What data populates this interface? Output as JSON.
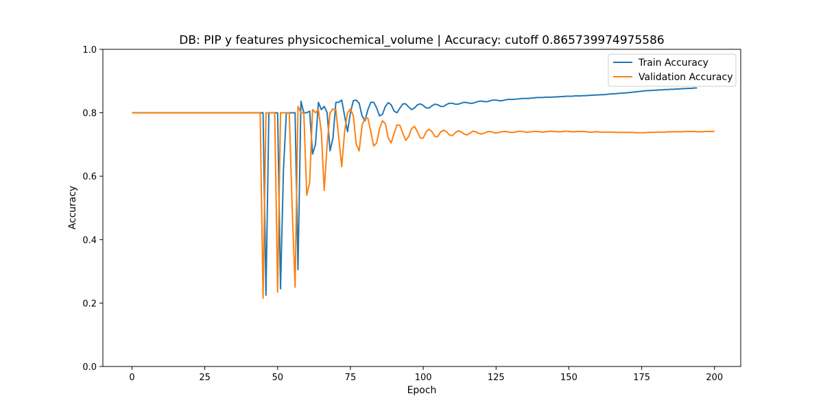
{
  "chart_data": {
    "type": "line",
    "title": "DB: PIP y features physicochemical_volume | Accuracy: cutoff 0.865739974975586",
    "xlabel": "Epoch",
    "ylabel": "Accuracy",
    "xlim": [
      -10,
      209
    ],
    "ylim": [
      0.0,
      1.0
    ],
    "xticks": [
      0,
      25,
      50,
      75,
      100,
      125,
      150,
      175,
      200
    ],
    "yticks": [
      0.0,
      0.2,
      0.4,
      0.6,
      0.8,
      1.0
    ],
    "grid": false,
    "legend_position": "upper right",
    "colors": {
      "Train Accuracy": "#1f77b4",
      "Validation Accuracy": "#ff7f0e"
    },
    "series": [
      {
        "name": "Train Accuracy",
        "color": "#1f77b4",
        "x_start": 0,
        "values": [
          0.8,
          0.8,
          0.8,
          0.8,
          0.8,
          0.8,
          0.8,
          0.8,
          0.8,
          0.8,
          0.8,
          0.8,
          0.8,
          0.8,
          0.8,
          0.8,
          0.8,
          0.8,
          0.8,
          0.8,
          0.8,
          0.8,
          0.8,
          0.8,
          0.8,
          0.8,
          0.8,
          0.8,
          0.8,
          0.8,
          0.8,
          0.8,
          0.8,
          0.8,
          0.8,
          0.8,
          0.8,
          0.8,
          0.8,
          0.8,
          0.8,
          0.8,
          0.8,
          0.8,
          0.8,
          0.8,
          0.225,
          0.8,
          0.8,
          0.8,
          0.8,
          0.245,
          0.62,
          0.8,
          0.8,
          0.8,
          0.8,
          0.305,
          0.836,
          0.8,
          0.8,
          0.805,
          0.67,
          0.7,
          0.833,
          0.81,
          0.82,
          0.8,
          0.68,
          0.72,
          0.833,
          0.833,
          0.84,
          0.79,
          0.74,
          0.8,
          0.838,
          0.84,
          0.83,
          0.79,
          0.775,
          0.81,
          0.833,
          0.833,
          0.815,
          0.79,
          0.795,
          0.82,
          0.832,
          0.825,
          0.805,
          0.8,
          0.815,
          0.828,
          0.828,
          0.818,
          0.81,
          0.815,
          0.825,
          0.828,
          0.823,
          0.815,
          0.815,
          0.822,
          0.827,
          0.825,
          0.82,
          0.82,
          0.826,
          0.83,
          0.83,
          0.827,
          0.827,
          0.83,
          0.833,
          0.832,
          0.83,
          0.83,
          0.833,
          0.836,
          0.837,
          0.835,
          0.835,
          0.838,
          0.84,
          0.84,
          0.838,
          0.838,
          0.84,
          0.842,
          0.842,
          0.842,
          0.843,
          0.844,
          0.845,
          0.845,
          0.845,
          0.846,
          0.847,
          0.848,
          0.848,
          0.848,
          0.849,
          0.849,
          0.849,
          0.85,
          0.85,
          0.851,
          0.851,
          0.852,
          0.852,
          0.852,
          0.853,
          0.853,
          0.853,
          0.854,
          0.854,
          0.855,
          0.855,
          0.856,
          0.856,
          0.857,
          0.857,
          0.858,
          0.859,
          0.86,
          0.86,
          0.861,
          0.862,
          0.862,
          0.863,
          0.864,
          0.865,
          0.866,
          0.867,
          0.868,
          0.869,
          0.87,
          0.87,
          0.871,
          0.871,
          0.872,
          0.872,
          0.873,
          0.873,
          0.874,
          0.874,
          0.875,
          0.875,
          0.876,
          0.876,
          0.877,
          0.877,
          0.878,
          0.878
        ]
      },
      {
        "name": "Validation Accuracy",
        "color": "#ff7f0e",
        "x_start": 0,
        "values": [
          0.8,
          0.8,
          0.8,
          0.8,
          0.8,
          0.8,
          0.8,
          0.8,
          0.8,
          0.8,
          0.8,
          0.8,
          0.8,
          0.8,
          0.8,
          0.8,
          0.8,
          0.8,
          0.8,
          0.8,
          0.8,
          0.8,
          0.8,
          0.8,
          0.8,
          0.8,
          0.8,
          0.8,
          0.8,
          0.8,
          0.8,
          0.8,
          0.8,
          0.8,
          0.8,
          0.8,
          0.8,
          0.8,
          0.8,
          0.8,
          0.8,
          0.8,
          0.8,
          0.8,
          0.8,
          0.215,
          0.8,
          0.8,
          0.8,
          0.8,
          0.235,
          0.8,
          0.8,
          0.8,
          0.8,
          0.5,
          0.25,
          0.82,
          0.8,
          0.8,
          0.54,
          0.58,
          0.81,
          0.8,
          0.81,
          0.74,
          0.555,
          0.7,
          0.8,
          0.812,
          0.81,
          0.72,
          0.63,
          0.74,
          0.8,
          0.812,
          0.79,
          0.7,
          0.68,
          0.76,
          0.783,
          0.783,
          0.74,
          0.695,
          0.705,
          0.75,
          0.775,
          0.765,
          0.72,
          0.705,
          0.735,
          0.762,
          0.76,
          0.735,
          0.713,
          0.725,
          0.75,
          0.757,
          0.74,
          0.72,
          0.72,
          0.74,
          0.748,
          0.74,
          0.725,
          0.725,
          0.74,
          0.745,
          0.74,
          0.73,
          0.728,
          0.737,
          0.743,
          0.74,
          0.733,
          0.73,
          0.735,
          0.742,
          0.74,
          0.735,
          0.733,
          0.736,
          0.74,
          0.741,
          0.738,
          0.736,
          0.738,
          0.74,
          0.741,
          0.74,
          0.738,
          0.738,
          0.74,
          0.742,
          0.741,
          0.739,
          0.739,
          0.74,
          0.741,
          0.741,
          0.74,
          0.739,
          0.74,
          0.741,
          0.742,
          0.741,
          0.74,
          0.74,
          0.741,
          0.742,
          0.741,
          0.74,
          0.74,
          0.741,
          0.741,
          0.741,
          0.74,
          0.739,
          0.739,
          0.74,
          0.74,
          0.739,
          0.739,
          0.739,
          0.739,
          0.739,
          0.738,
          0.738,
          0.738,
          0.738,
          0.738,
          0.738,
          0.738,
          0.737,
          0.737,
          0.737,
          0.737,
          0.738,
          0.738,
          0.738,
          0.739,
          0.739,
          0.739,
          0.739,
          0.74,
          0.74,
          0.74,
          0.74,
          0.74,
          0.74,
          0.741,
          0.741,
          0.741,
          0.741,
          0.74,
          0.74,
          0.74,
          0.741,
          0.741,
          0.741,
          0.741
        ]
      }
    ]
  }
}
